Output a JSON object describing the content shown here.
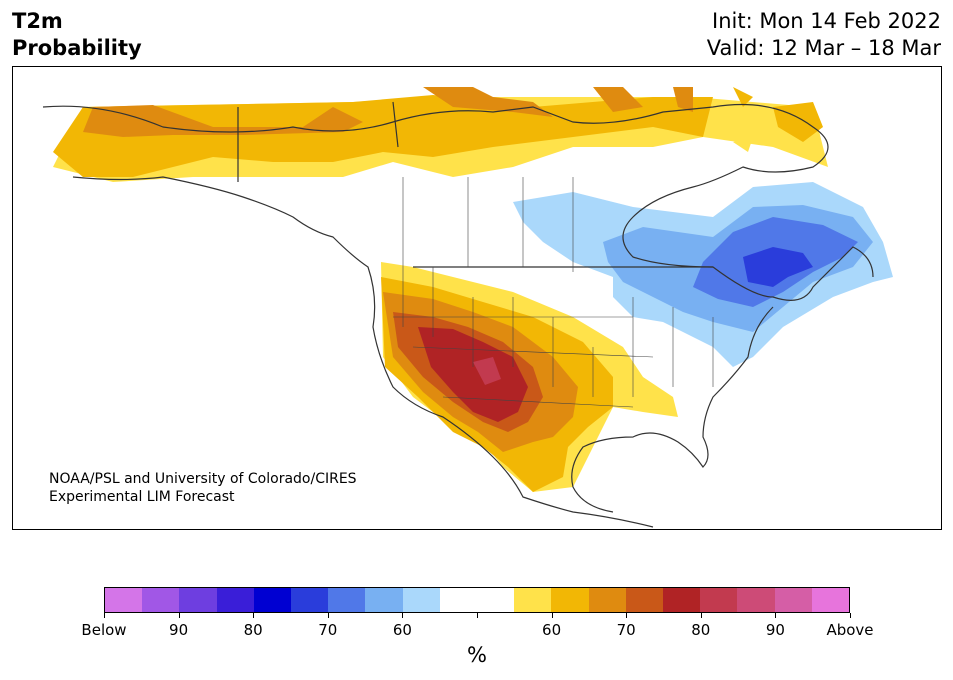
{
  "header": {
    "title_line1": "T2m",
    "title_line2": "Probability",
    "init": "Init: Mon 14 Feb 2022",
    "valid": "Valid: 12 Mar – 18 Mar"
  },
  "credit": {
    "line1": "NOAA/PSL and University of Colorado/CIRES",
    "line2": "Experimental LIM Forecast"
  },
  "colorbar": {
    "unit": "%",
    "colors": [
      "#d475e8",
      "#a157e6",
      "#6e3ee0",
      "#3a1ed8",
      "#0000d2",
      "#2a3ddb",
      "#5078e8",
      "#78b0f2",
      "#aad8fb",
      "#ffffff",
      "#ffffff",
      "#ffe24a",
      "#f2b705",
      "#df8b10",
      "#c95818",
      "#b02325",
      "#c23a4f",
      "#cd4b77",
      "#d55ea6",
      "#e774dc"
    ],
    "labels": [
      "Below",
      "90",
      "80",
      "70",
      "60",
      "",
      "60",
      "70",
      "80",
      "90",
      "Above"
    ]
  }
}
